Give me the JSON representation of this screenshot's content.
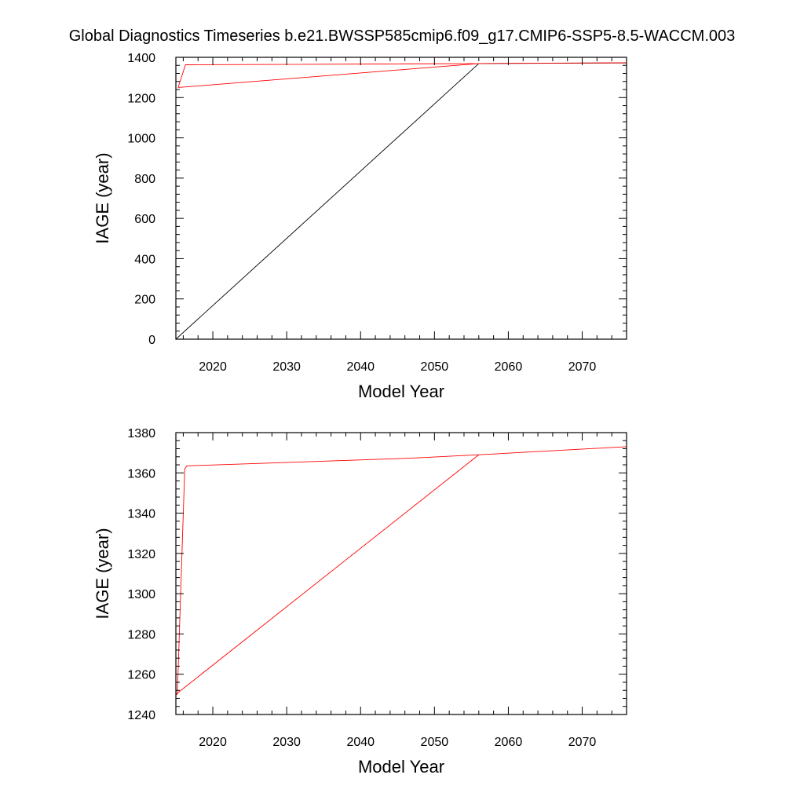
{
  "page_title": "Global Diagnostics Timeseries b.e21.BWSSP585cmip6.f09_g17.CMIP6-SSP5-8.5-WACCM.003",
  "colors": {
    "axis": "#000000",
    "series_red": "#ff0000",
    "series_black": "#000000"
  },
  "chart_data": [
    {
      "type": "line",
      "xlabel": "Model Year",
      "ylabel": "IAGE (year)",
      "xlim": [
        2015,
        2076
      ],
      "ylim": [
        0,
        1400
      ],
      "x_major_ticks": [
        2020,
        2030,
        2040,
        2050,
        2060,
        2070
      ],
      "x_tick_labels": [
        "2020",
        "2030",
        "2040",
        "2050",
        "2060",
        "2070"
      ],
      "y_major_ticks": [
        0,
        200,
        400,
        600,
        800,
        1000,
        1200,
        1400
      ],
      "y_tick_labels": [
        "0",
        "200",
        "400",
        "600",
        "800",
        "1000",
        "1200",
        "1400"
      ],
      "grid": false,
      "series": [
        {
          "color": "#000000",
          "x": [
            2015,
            2056,
            2076
          ],
          "y": [
            0,
            1369,
            1372
          ]
        },
        {
          "color": "#ff0000",
          "x": [
            2015.3,
            2016.3,
            2056,
            2076,
            2056,
            2015.3,
            2015.3
          ],
          "y": [
            1250,
            1363,
            1369,
            1373,
            1369,
            1250,
            1250
          ]
        }
      ]
    },
    {
      "type": "line",
      "xlabel": "Model Year",
      "ylabel": "IAGE (year)",
      "xlim": [
        2015,
        2076
      ],
      "ylim": [
        1240,
        1380
      ],
      "x_major_ticks": [
        2020,
        2030,
        2040,
        2050,
        2060,
        2070
      ],
      "x_tick_labels": [
        "2020",
        "2030",
        "2040",
        "2050",
        "2060",
        "2070"
      ],
      "y_major_ticks": [
        1240,
        1260,
        1280,
        1300,
        1320,
        1340,
        1360,
        1380
      ],
      "y_tick_labels": [
        "1240",
        "1260",
        "1280",
        "1300",
        "1320",
        "1340",
        "1360",
        "1380"
      ],
      "grid": false,
      "series": [
        {
          "color": "#ff0000",
          "x": [
            2015,
            2015.2,
            2016.2,
            2016.5,
            2046,
            2047.3,
            2056,
            2076
          ],
          "y": [
            1250,
            1250,
            1362,
            1363.5,
            1367.2,
            1367.4,
            1369,
            1373
          ]
        },
        {
          "color": "#ff0000",
          "x": [
            2015,
            2056
          ],
          "y": [
            1250,
            1369
          ]
        }
      ]
    }
  ]
}
